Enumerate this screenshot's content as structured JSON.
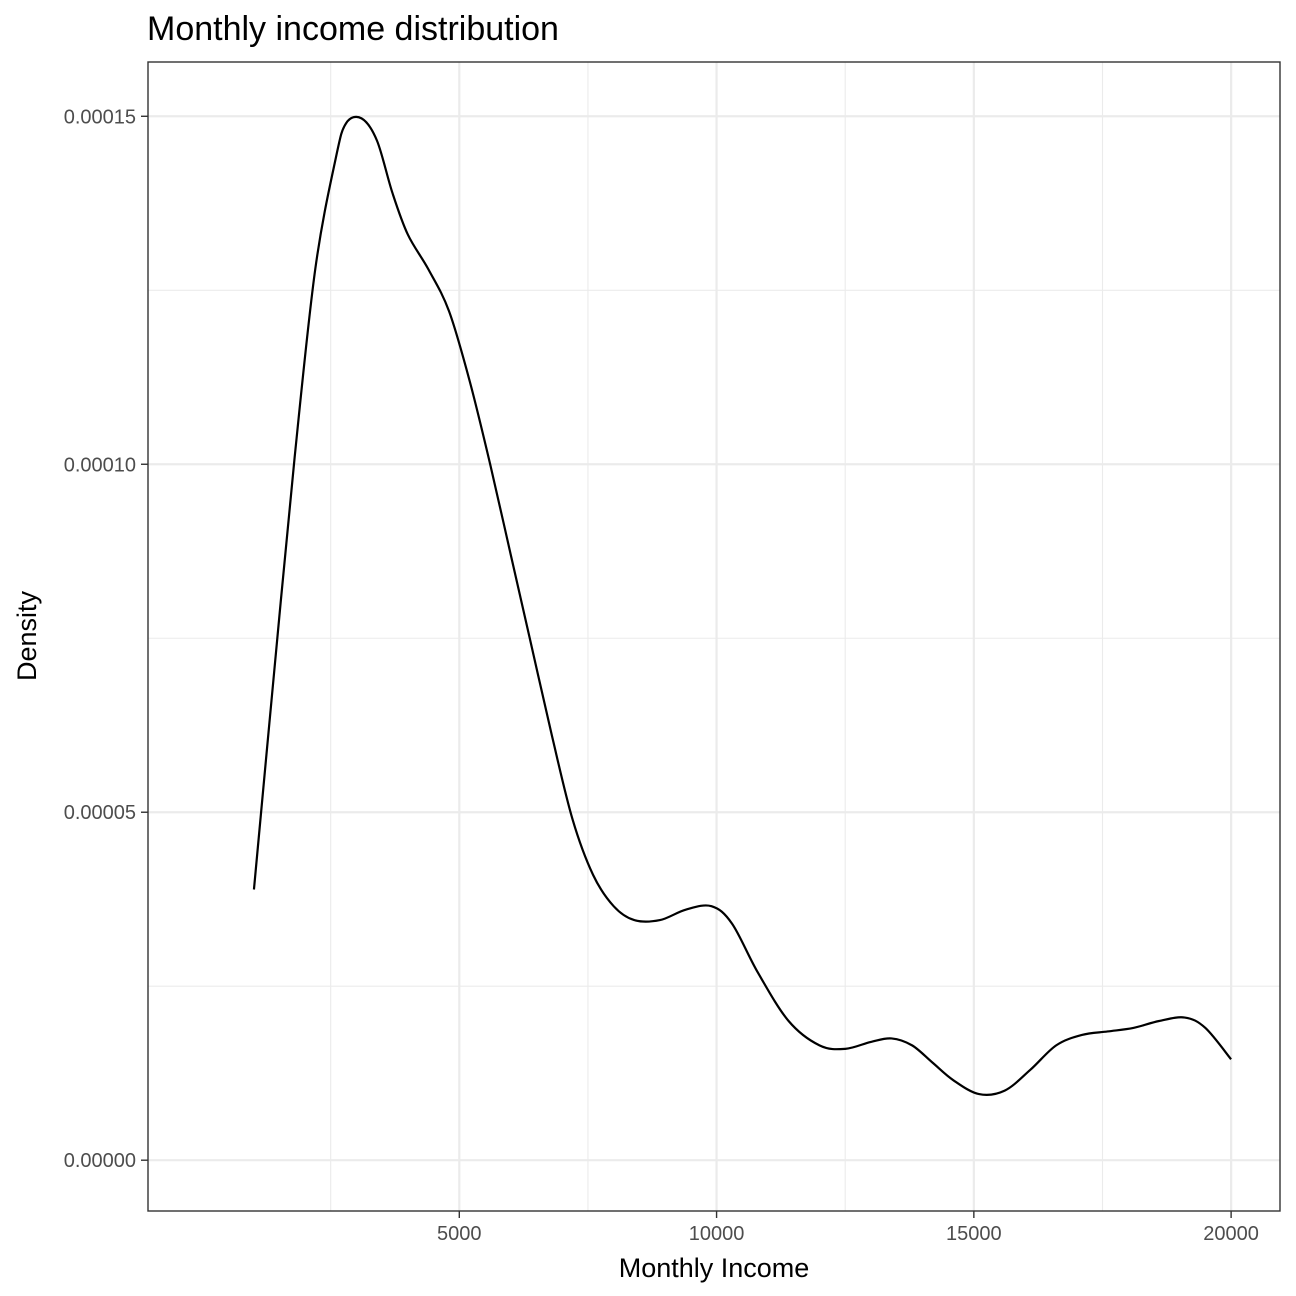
{
  "chart_data": {
    "type": "line",
    "title": "Monthly income distribution",
    "xlabel": "Monthly Income",
    "ylabel": "Density",
    "xlim": [
      -1050,
      20950
    ],
    "ylim": [
      -7.3e-06,
      0.0001578
    ],
    "x_ticks": [
      {
        "value": 5000,
        "label": "5000"
      },
      {
        "value": 10000,
        "label": "10000"
      },
      {
        "value": 15000,
        "label": "15000"
      },
      {
        "value": 20000,
        "label": "20000"
      }
    ],
    "x_minor_ticks": [
      2500,
      7500,
      12500,
      17500
    ],
    "y_ticks": [
      {
        "value": 0.0,
        "label": "0.00000"
      },
      {
        "value": 5e-05,
        "label": "0.00005"
      },
      {
        "value": 0.0001,
        "label": "0.00010"
      },
      {
        "value": 0.00015,
        "label": "0.00015"
      }
    ],
    "y_minor_ticks": [
      2.5e-05,
      7.5e-05,
      0.000125
    ],
    "grid": true,
    "series": [
      {
        "color": "#000000",
        "x": [
          1009,
          1400,
          1800,
          2200,
          2600,
          2800,
          3100,
          3400,
          3700,
          4000,
          4400,
          4800,
          5200,
          5600,
          6000,
          6400,
          6800,
          7200,
          7600,
          8000,
          8400,
          8900,
          9400,
          9900,
          10300,
          10800,
          11400,
          12000,
          12500,
          13000,
          13400,
          13800,
          14200,
          14600,
          15100,
          15600,
          16100,
          16600,
          17100,
          17600,
          18100,
          18600,
          19100,
          19500,
          19999
        ],
        "y": [
          3.89e-05,
          7e-05,
          0.000101,
          0.000128,
          0.000144,
          0.000149,
          0.0001497,
          0.0001465,
          0.000139,
          0.000133,
          0.000128,
          0.000122,
          0.000112,
          0.0001,
          8.7e-05,
          7.4e-05,
          6.1e-05,
          4.9e-05,
          4.1e-05,
          3.65e-05,
          3.45e-05,
          3.45e-05,
          3.6e-05,
          3.65e-05,
          3.4e-05,
          2.7e-05,
          2e-05,
          1.65e-05,
          1.6e-05,
          1.7e-05,
          1.75e-05,
          1.65e-05,
          1.4e-05,
          1.15e-05,
          9.5e-06,
          1e-05,
          1.3e-05,
          1.65e-05,
          1.8e-05,
          1.85e-05,
          1.9e-05,
          2e-05,
          2.05e-05,
          1.9e-05,
          1.45e-05
        ]
      }
    ]
  }
}
